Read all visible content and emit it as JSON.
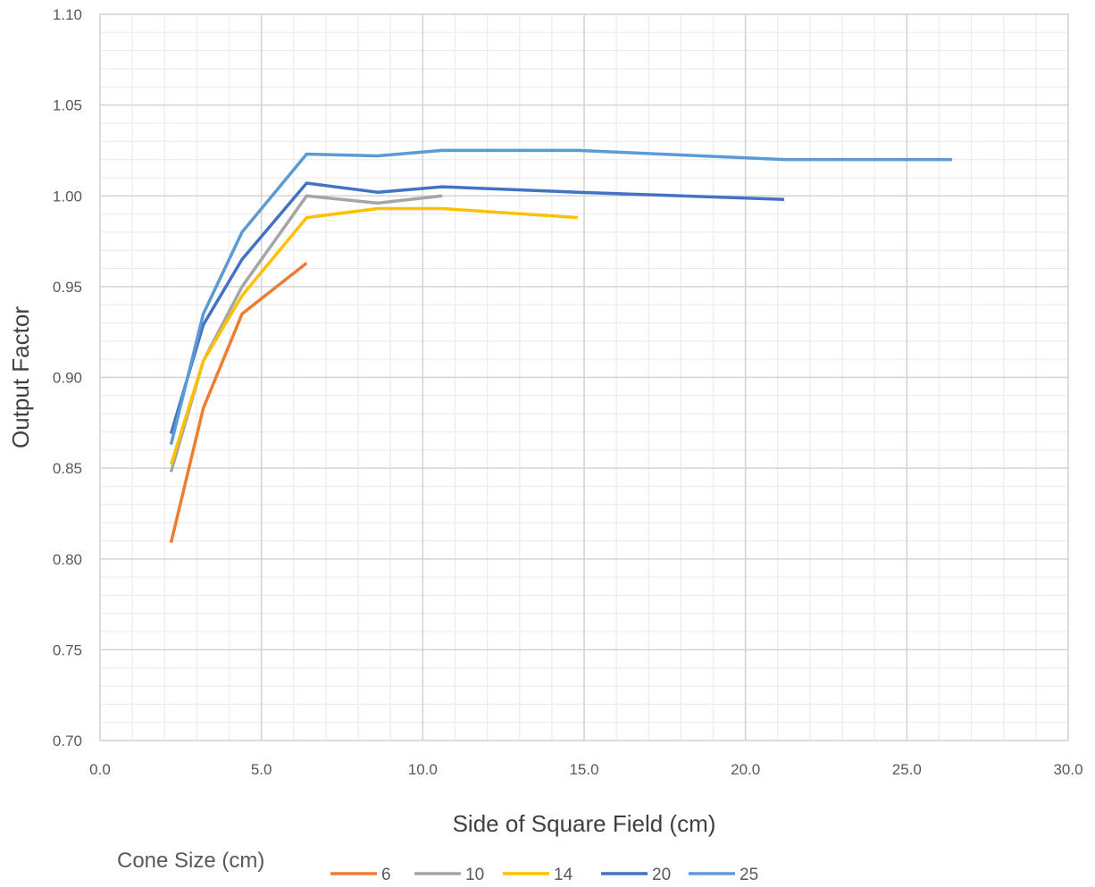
{
  "chart_data": {
    "type": "line",
    "title": "",
    "xlabel": "Side of Square Field (cm)",
    "ylabel": "Output Factor",
    "xlim": [
      0,
      30
    ],
    "ylim": [
      0.7,
      1.1
    ],
    "x_ticks": [
      "0.0",
      "5.0",
      "10.0",
      "15.0",
      "20.0",
      "25.0",
      "30.0"
    ],
    "y_ticks": [
      "0.70",
      "0.75",
      "0.80",
      "0.85",
      "0.90",
      "0.95",
      "1.00",
      "1.05",
      "1.10"
    ],
    "grid": {
      "major": true,
      "minor": true
    },
    "legend": {
      "title": "Cone Size (cm)",
      "position": "bottom"
    },
    "series": [
      {
        "name": "6",
        "color": "#ED7D31",
        "x": [
          2.2,
          3.2,
          4.4,
          6.4
        ],
        "y": [
          0.809,
          0.883,
          0.935,
          0.963
        ]
      },
      {
        "name": "10",
        "color": "#A5A5A5",
        "x": [
          2.2,
          3.2,
          4.4,
          6.4,
          8.6,
          10.6
        ],
        "y": [
          0.848,
          0.909,
          0.95,
          1.0,
          0.996,
          1.0
        ]
      },
      {
        "name": "14",
        "color": "#FFC000",
        "x": [
          2.2,
          3.2,
          4.4,
          6.4,
          8.6,
          10.6,
          14.8
        ],
        "y": [
          0.852,
          0.909,
          0.945,
          0.988,
          0.993,
          0.993,
          0.988
        ]
      },
      {
        "name": "20",
        "color": "#4472C4",
        "x": [
          2.2,
          3.2,
          4.4,
          6.4,
          8.6,
          10.6,
          14.8,
          21.2
        ],
        "y": [
          0.869,
          0.929,
          0.965,
          1.007,
          1.002,
          1.005,
          1.002,
          0.998
        ]
      },
      {
        "name": "25",
        "color": "#5B9BD5",
        "x": [
          2.2,
          3.2,
          4.4,
          6.4,
          8.6,
          10.6,
          14.8,
          21.2,
          26.4
        ],
        "y": [
          0.863,
          0.935,
          0.98,
          1.023,
          1.022,
          1.025,
          1.025,
          1.02,
          1.02
        ]
      }
    ]
  }
}
